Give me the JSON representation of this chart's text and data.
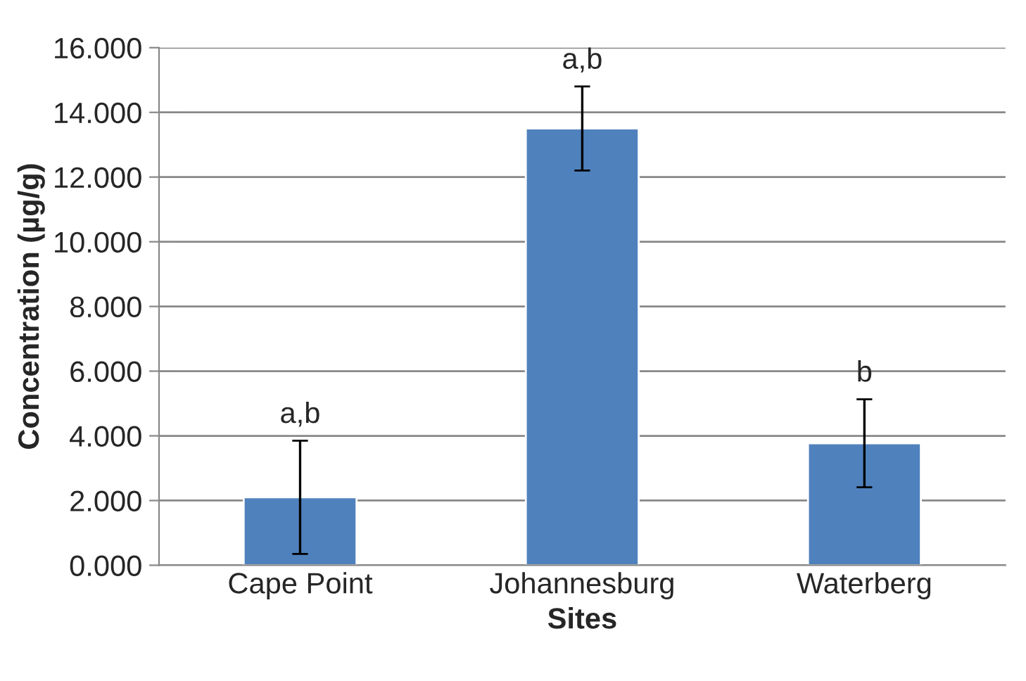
{
  "chart_data": {
    "type": "bar",
    "xlabel": "Sites",
    "ylabel": "Concentration (µg/g)",
    "categories": [
      "Cape Point",
      "Johannesburg",
      "Waterberg"
    ],
    "values": [
      2.1,
      13.5,
      3.77
    ],
    "errors": [
      1.75,
      1.3,
      1.36
    ],
    "color": "#4f81bd",
    "ylim": [
      0,
      16
    ],
    "yticks": [
      {
        "value": 0,
        "label": "0.000"
      },
      {
        "value": 2,
        "label": "2.000"
      },
      {
        "value": 4,
        "label": "4.000"
      },
      {
        "value": 6,
        "label": "6.000"
      },
      {
        "value": 8,
        "label": "8.000"
      },
      {
        "value": 10,
        "label": "10.000"
      },
      {
        "value": 12,
        "label": "12.000"
      },
      {
        "value": 14,
        "label": "14.000"
      },
      {
        "value": 16,
        "label": "16.000"
      }
    ],
    "grid": "y",
    "annotations": [
      "a,b",
      "a,b",
      "b"
    ]
  }
}
